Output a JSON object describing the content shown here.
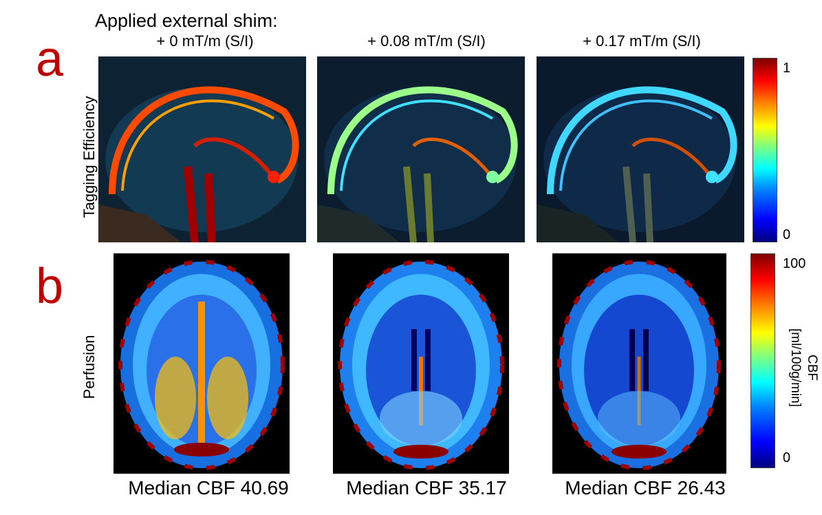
{
  "header": {
    "title": "Applied external shim:",
    "columns": [
      "+ 0 mT/m (S/I)",
      "+ 0.08 mT/m (S/I)",
      "+ 0.17 mT/m (S/I)"
    ]
  },
  "panels": {
    "a": {
      "letter": "a",
      "row_label": "Tagging Efficiency",
      "colorbar": {
        "max_label": "1",
        "min_label": "0"
      }
    },
    "b": {
      "letter": "b",
      "row_label": "Perfusion",
      "colorbar": {
        "max_label": "100",
        "min_label": "0",
        "label_line1": "CBF",
        "label_line2": "[ml/100g/min]"
      },
      "captions": [
        "Median CBF 40.69",
        "Median CBF 35.17",
        "Median CBF 26.43"
      ]
    }
  },
  "colors": {
    "panel_letter": "#c00000",
    "background": "#ffffff",
    "image_background": "#000000"
  }
}
